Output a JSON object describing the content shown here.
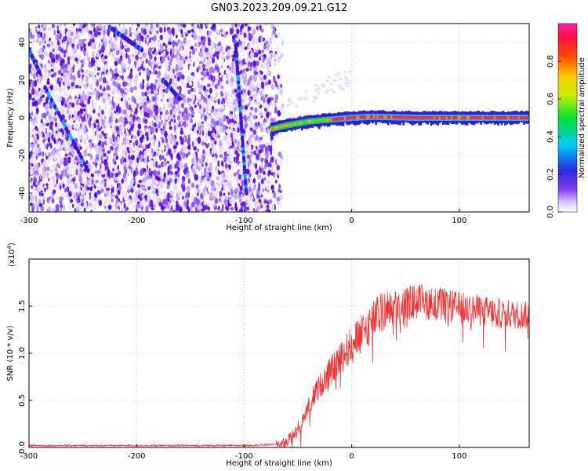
{
  "title": "GN03.2023.209.09.21.G12",
  "colors": {
    "snr_line": "#ee3333",
    "spectrum_low": "#e6d8ff",
    "spectrum_mid": "#6a18e8",
    "spectrum_ridge": "#ff2040"
  },
  "chart_data": [
    {
      "type": "heatmap",
      "title": "GN03.2023.209.09.21.G12",
      "xlabel": "Height of straight line (km)",
      "ylabel": "Frequency (Hz)",
      "xlim": [
        -300,
        165
      ],
      "ylim": [
        -50,
        50
      ],
      "xticks": [
        -300,
        -200,
        -100,
        0,
        100
      ],
      "yticks": [
        -40,
        -20,
        0,
        20,
        40
      ],
      "ridge": {
        "x": [
          -75,
          -60,
          -40,
          -20,
          0,
          20,
          60,
          100,
          165
        ],
        "y": [
          -6,
          -4,
          -2,
          -1,
          0,
          0.5,
          0,
          0,
          0
        ]
      },
      "interference_tracks": [
        {
          "x": [
            -300,
            -290
          ],
          "y": [
            36,
            24
          ]
        },
        {
          "x": [
            -285,
            -245
          ],
          "y": [
            16,
            -28
          ]
        },
        {
          "x": [
            -225,
            -195
          ],
          "y": [
            48,
            36
          ]
        },
        {
          "x": [
            -175,
            -160
          ],
          "y": [
            20,
            10
          ]
        },
        {
          "x": [
            -108,
            -103
          ],
          "y": [
            40,
            0
          ]
        },
        {
          "x": [
            -103,
            -98
          ],
          "y": [
            0,
            -40
          ]
        }
      ],
      "colorbar": {
        "label": "Normalized spectral amplitude",
        "ticks": [
          "0.0",
          "0.2",
          "0.4",
          "0.6",
          "0.8"
        ],
        "range": [
          0,
          1
        ]
      },
      "grid": true
    },
    {
      "type": "line",
      "xlabel": "Height of straight line (km)",
      "ylabel": "SNR (10 * v/v)",
      "exponent_label": "(x10",
      "exponent_power": "4",
      "exponent_close": ")",
      "xlim": [
        -300,
        165
      ],
      "ylim": [
        0,
        2.0
      ],
      "xticks": [
        -300,
        -200,
        -100,
        0,
        100
      ],
      "yticks": [
        "0.0",
        "0.5",
        "1.0",
        "1.5"
      ],
      "grid": true,
      "series": [
        {
          "x": [
            -300,
            -250,
            -200,
            -150,
            -100,
            -75,
            -60,
            -50,
            -40,
            -30,
            -20,
            -10,
            0,
            10,
            20,
            30,
            40,
            60,
            80,
            100,
            120,
            140,
            165
          ],
          "y": [
            0.02,
            0.02,
            0.02,
            0.02,
            0.02,
            0.03,
            0.05,
            0.2,
            0.45,
            0.65,
            0.8,
            0.95,
            1.1,
            1.2,
            1.35,
            1.45,
            1.5,
            1.55,
            1.52,
            1.48,
            1.45,
            1.42,
            1.4
          ]
        }
      ]
    }
  ]
}
